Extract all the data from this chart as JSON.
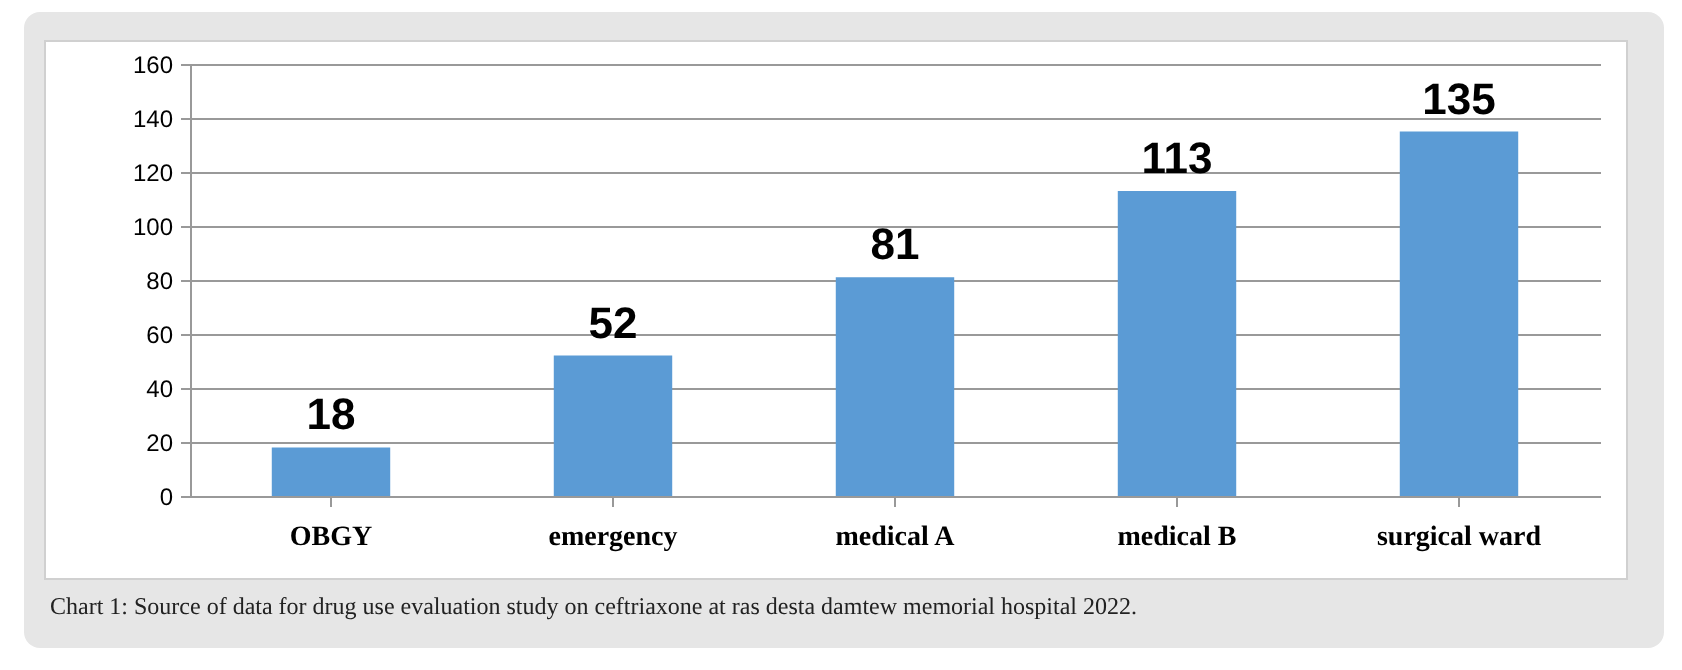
{
  "chart_data": {
    "type": "bar",
    "categories": [
      "OBGY",
      "emergency",
      "medical A",
      "medical B",
      "surgical ward"
    ],
    "values": [
      18,
      52,
      81,
      113,
      135
    ],
    "color": "#5b9bd5",
    "ylim": [
      0,
      160
    ],
    "yticks": [
      0,
      20,
      40,
      60,
      80,
      100,
      120,
      140,
      160
    ],
    "grid": "y",
    "data_labels": true,
    "annotations": [
      "Chart 1: Source of data for drug use evaluation study on ceftriaxone at ras desta damtew memorial hospital 2022."
    ]
  }
}
